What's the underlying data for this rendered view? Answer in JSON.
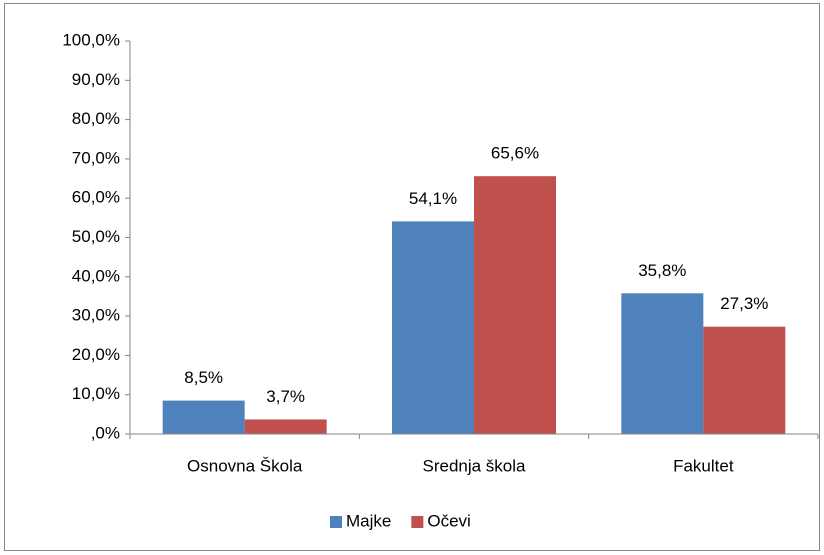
{
  "chart_data": {
    "type": "bar",
    "categories": [
      "Osnovna Škola",
      "Srednja škola",
      "Fakultet"
    ],
    "series": [
      {
        "name": "Majke",
        "color": "#4f81bd",
        "values": [
          8.5,
          54.1,
          35.8
        ],
        "value_labels": [
          "8,5%",
          "54,1%",
          "35,8%"
        ]
      },
      {
        "name": "Očevi",
        "color": "#c0504d",
        "values": [
          3.7,
          65.6,
          27.3
        ],
        "value_labels": [
          "3,7%",
          "65,6%",
          "27,3%"
        ]
      }
    ],
    "ylim": [
      0,
      100
    ],
    "yticks": [
      {
        "value": 0,
        "label": ",0%"
      },
      {
        "value": 10,
        "label": "10,0%"
      },
      {
        "value": 20,
        "label": "20,0%"
      },
      {
        "value": 30,
        "label": "30,0%"
      },
      {
        "value": 40,
        "label": "40,0%"
      },
      {
        "value": 50,
        "label": "50,0%"
      },
      {
        "value": 60,
        "label": "60,0%"
      },
      {
        "value": 70,
        "label": "70,0%"
      },
      {
        "value": 80,
        "label": "80,0%"
      },
      {
        "value": 90,
        "label": "90,0%"
      },
      {
        "value": 100,
        "label": "100,0%"
      }
    ],
    "legend": "bottom"
  }
}
